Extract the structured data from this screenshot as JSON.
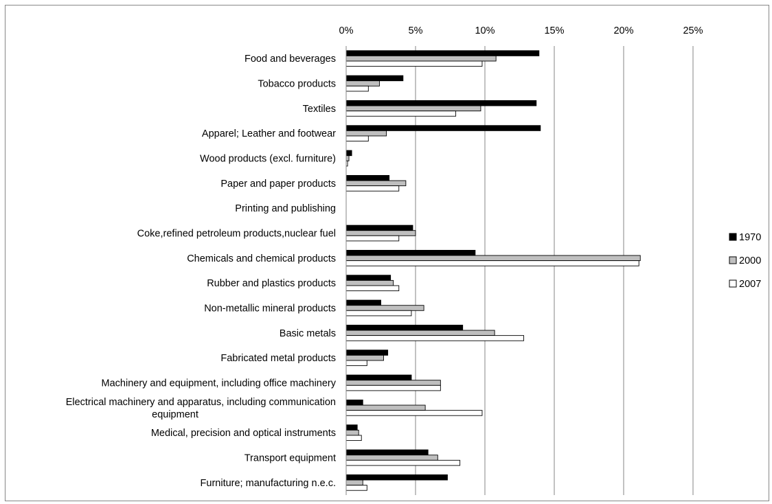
{
  "chart_data": {
    "type": "bar",
    "orientation": "horizontal",
    "categories": [
      "Food and beverages",
      "Tobacco products",
      "Textiles",
      "Apparel; Leather and footwear",
      "Wood products (excl. furniture)",
      "Paper and paper products",
      "Printing and publishing",
      "Coke,refined petroleum products,nuclear fuel",
      "Chemicals and chemical products",
      "Rubber and plastics products",
      "Non-metallic mineral products",
      "Basic metals",
      "Fabricated metal products",
      "Machinery and equipment, including office machinery",
      [
        "Electrical machinery and apparatus, including communication",
        "equipment"
      ],
      "Medical, precision and optical instruments",
      "Transport equipment",
      "Furniture; manufacturing n.e.c."
    ],
    "series": [
      {
        "name": "1970",
        "color": "#000000",
        "values": [
          13.9,
          4.1,
          13.7,
          14.0,
          0.4,
          3.1,
          0,
          4.8,
          9.3,
          3.2,
          2.5,
          8.4,
          3.0,
          4.7,
          1.2,
          0.8,
          5.9,
          7.3
        ]
      },
      {
        "name": "2000",
        "color": "#bfbfbf",
        "values": [
          10.8,
          2.4,
          9.7,
          2.9,
          0.2,
          4.3,
          0,
          5.0,
          21.2,
          3.4,
          5.6,
          10.7,
          2.7,
          6.8,
          5.7,
          0.9,
          6.6,
          1.2
        ]
      },
      {
        "name": "2007",
        "color": "#ffffff",
        "values": [
          9.8,
          1.6,
          7.9,
          1.6,
          0.1,
          3.8,
          0,
          3.8,
          21.1,
          3.8,
          4.7,
          12.8,
          1.5,
          6.8,
          9.8,
          1.1,
          8.2,
          1.5
        ]
      }
    ],
    "xlim": [
      0,
      25
    ],
    "ticks": [
      "0%",
      "5%",
      "10%",
      "15%",
      "20%",
      "25%"
    ],
    "tick_values": [
      0,
      5,
      10,
      15,
      20,
      25
    ],
    "axis_position": "top",
    "legend_position": "right",
    "grid": true
  }
}
